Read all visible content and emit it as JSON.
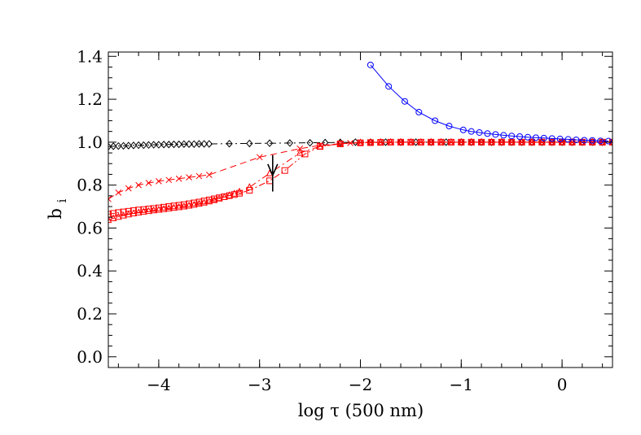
{
  "chart_data": {
    "type": "line",
    "xlabel": "log τ (500 nm)",
    "ylabel_main": "b",
    "ylabel_sub": "i",
    "xlim": [
      -4.5,
      0.5
    ],
    "ylim": [
      -0.05,
      1.42
    ],
    "x_ticks": [
      -4,
      -3,
      -2,
      -1,
      0
    ],
    "x_tick_labels": [
      "−4",
      "−3",
      "−2",
      "−1",
      "0"
    ],
    "y_ticks": [
      0.0,
      0.2,
      0.4,
      0.6,
      0.8,
      1.0,
      1.2,
      1.4
    ],
    "y_tick_labels": [
      "0.0",
      "0.2",
      "0.4",
      "0.6",
      "0.8",
      "1.0",
      "1.2",
      "1.4"
    ],
    "grid": false,
    "annotation": {
      "type": "vertical-arrow-line",
      "x": -2.87,
      "y_from": 0.77,
      "y_to": 0.94
    },
    "series": [
      {
        "color": "#000000",
        "marker": "diamond",
        "linestyle": "dash-dot",
        "x": [
          -4.5,
          -4.45,
          -4.4,
          -4.35,
          -4.3,
          -4.25,
          -4.2,
          -4.15,
          -4.1,
          -4.05,
          -4.0,
          -3.95,
          -3.9,
          -3.85,
          -3.8,
          -3.75,
          -3.7,
          -3.65,
          -3.6,
          -3.55,
          -3.5,
          -3.3,
          -3.1,
          -2.9,
          -2.7,
          -2.5,
          -2.35,
          -2.2,
          -2.05,
          -1.9,
          -1.75,
          -1.6,
          -1.45,
          -1.3,
          -1.15,
          -1.0,
          -0.9,
          -0.8,
          -0.7,
          -0.6,
          -0.5,
          -0.4,
          -0.3,
          -0.2,
          -0.1,
          0.0,
          0.1,
          0.2,
          0.3,
          0.4,
          0.5
        ],
        "y": [
          0.979,
          0.981,
          0.982,
          0.983,
          0.984,
          0.985,
          0.986,
          0.986,
          0.987,
          0.988,
          0.988,
          0.989,
          0.989,
          0.99,
          0.99,
          0.991,
          0.991,
          0.991,
          0.992,
          0.992,
          0.992,
          0.993,
          0.994,
          0.995,
          0.996,
          0.997,
          0.998,
          0.999,
          1.0,
          1.0,
          1.0,
          1.0,
          1.0,
          1.0,
          1.0,
          1.0,
          1.0,
          1.0,
          1.0,
          1.0,
          1.0,
          1.0,
          1.0,
          1.0,
          1.0,
          1.0,
          1.0,
          1.0,
          1.0,
          1.0,
          1.0
        ]
      },
      {
        "color": "#ff0000",
        "marker": "x",
        "linestyle": "dashed",
        "x": [
          -4.5,
          -4.4,
          -4.3,
          -4.2,
          -4.1,
          -4.0,
          -3.9,
          -3.8,
          -3.7,
          -3.6,
          -3.5,
          -3.0,
          -2.6,
          -2.4,
          -2.2,
          -2.1,
          -2.0,
          -1.9,
          -1.8,
          -1.7,
          -1.6,
          -1.5,
          -1.4,
          -1.3,
          -1.2,
          -1.1,
          -1.0,
          -0.9,
          -0.8,
          -0.7,
          -0.6,
          -0.5,
          -0.4,
          -0.3,
          -0.2,
          -0.1,
          0.0,
          0.1,
          0.2,
          0.3,
          0.4,
          0.5
        ],
        "y": [
          0.735,
          0.765,
          0.785,
          0.8,
          0.81,
          0.818,
          0.824,
          0.83,
          0.836,
          0.842,
          0.848,
          0.93,
          0.97,
          0.985,
          0.993,
          0.996,
          0.998,
          0.999,
          1.0,
          1.0,
          1.0,
          1.0,
          1.0,
          1.0,
          1.0,
          1.0,
          1.0,
          1.0,
          1.0,
          1.0,
          1.0,
          1.0,
          1.0,
          1.0,
          1.0,
          1.0,
          1.0,
          1.0,
          1.0,
          1.0,
          1.0,
          1.0
        ]
      },
      {
        "color": "#ff0000",
        "marker": "triangle",
        "linestyle": "dash-dot",
        "x": [
          -4.5,
          -4.45,
          -4.4,
          -4.35,
          -4.3,
          -4.25,
          -4.2,
          -4.15,
          -4.1,
          -4.05,
          -4.0,
          -3.95,
          -3.9,
          -3.85,
          -3.8,
          -3.75,
          -3.7,
          -3.65,
          -3.6,
          -3.55,
          -3.5,
          -3.45,
          -3.4,
          -3.35,
          -3.3,
          -3.25,
          -3.2,
          -3.1,
          -2.9,
          -2.6,
          -2.4,
          -2.2,
          -2.0,
          -1.9,
          -1.8,
          -1.7,
          -1.6,
          -1.5,
          -1.4,
          -1.3,
          -1.2,
          -1.1,
          -1.0,
          -0.9,
          -0.8,
          -0.7,
          -0.6,
          -0.5,
          -0.4,
          -0.3,
          -0.2,
          -0.1,
          0.0,
          0.1,
          0.2,
          0.3,
          0.4,
          0.5
        ],
        "y": [
          0.637,
          0.645,
          0.652,
          0.658,
          0.663,
          0.668,
          0.672,
          0.676,
          0.679,
          0.682,
          0.685,
          0.688,
          0.691,
          0.694,
          0.697,
          0.7,
          0.704,
          0.708,
          0.713,
          0.718,
          0.724,
          0.73,
          0.737,
          0.744,
          0.752,
          0.76,
          0.769,
          0.79,
          0.855,
          0.95,
          0.98,
          0.993,
          0.998,
          0.999,
          1.0,
          1.0,
          1.0,
          1.0,
          1.0,
          1.0,
          1.0,
          1.0,
          1.0,
          1.0,
          1.0,
          1.0,
          1.0,
          1.0,
          1.0,
          1.0,
          1.0,
          1.0,
          1.0,
          1.0,
          1.0,
          1.0,
          1.0,
          1.0
        ]
      },
      {
        "color": "#ff0000",
        "marker": "square",
        "linestyle": "dash-dot-dot",
        "x": [
          -4.5,
          -4.45,
          -4.4,
          -4.35,
          -4.3,
          -4.25,
          -4.2,
          -4.15,
          -4.1,
          -4.05,
          -4.0,
          -3.95,
          -3.9,
          -3.85,
          -3.8,
          -3.75,
          -3.7,
          -3.65,
          -3.6,
          -3.55,
          -3.5,
          -3.45,
          -3.4,
          -3.35,
          -3.3,
          -3.25,
          -3.2,
          -3.1,
          -2.9,
          -2.75,
          -2.55,
          -2.4,
          -2.2,
          -2.0,
          -1.9,
          -1.8,
          -1.7,
          -1.6,
          -1.5,
          -1.4,
          -1.3,
          -1.2,
          -1.1,
          -1.0,
          -0.9,
          -0.8,
          -0.7,
          -0.6,
          -0.5,
          -0.4,
          -0.3,
          -0.2,
          -0.1,
          0.0,
          0.1,
          0.2,
          0.3,
          0.4,
          0.5
        ],
        "y": [
          0.664,
          0.668,
          0.672,
          0.675,
          0.678,
          0.681,
          0.684,
          0.686,
          0.689,
          0.691,
          0.694,
          0.697,
          0.7,
          0.703,
          0.706,
          0.709,
          0.713,
          0.717,
          0.721,
          0.726,
          0.731,
          0.736,
          0.741,
          0.746,
          0.751,
          0.756,
          0.762,
          0.776,
          0.82,
          0.868,
          0.945,
          0.98,
          0.992,
          0.997,
          0.998,
          0.999,
          1.0,
          1.0,
          1.0,
          1.0,
          1.0,
          1.0,
          1.0,
          1.0,
          1.0,
          1.0,
          1.0,
          1.0,
          1.0,
          1.0,
          1.0,
          1.0,
          1.0,
          1.0,
          1.0,
          1.0,
          1.0,
          1.0,
          1.0
        ]
      },
      {
        "color": "#0000ff",
        "marker": "circle",
        "linestyle": "solid",
        "x": [
          -1.9,
          -1.72,
          -1.56,
          -1.42,
          -1.26,
          -1.12,
          -0.98,
          -0.9,
          -0.82,
          -0.74,
          -0.66,
          -0.58,
          -0.5,
          -0.42,
          -0.34,
          -0.26,
          -0.18,
          -0.1,
          -0.02,
          0.06,
          0.14,
          0.22,
          0.3,
          0.38,
          0.46
        ],
        "y": [
          1.36,
          1.26,
          1.19,
          1.14,
          1.1,
          1.075,
          1.057,
          1.05,
          1.045,
          1.04,
          1.036,
          1.032,
          1.029,
          1.026,
          1.023,
          1.021,
          1.019,
          1.017,
          1.015,
          1.013,
          1.011,
          1.009,
          1.008,
          1.006,
          1.005
        ]
      }
    ]
  }
}
